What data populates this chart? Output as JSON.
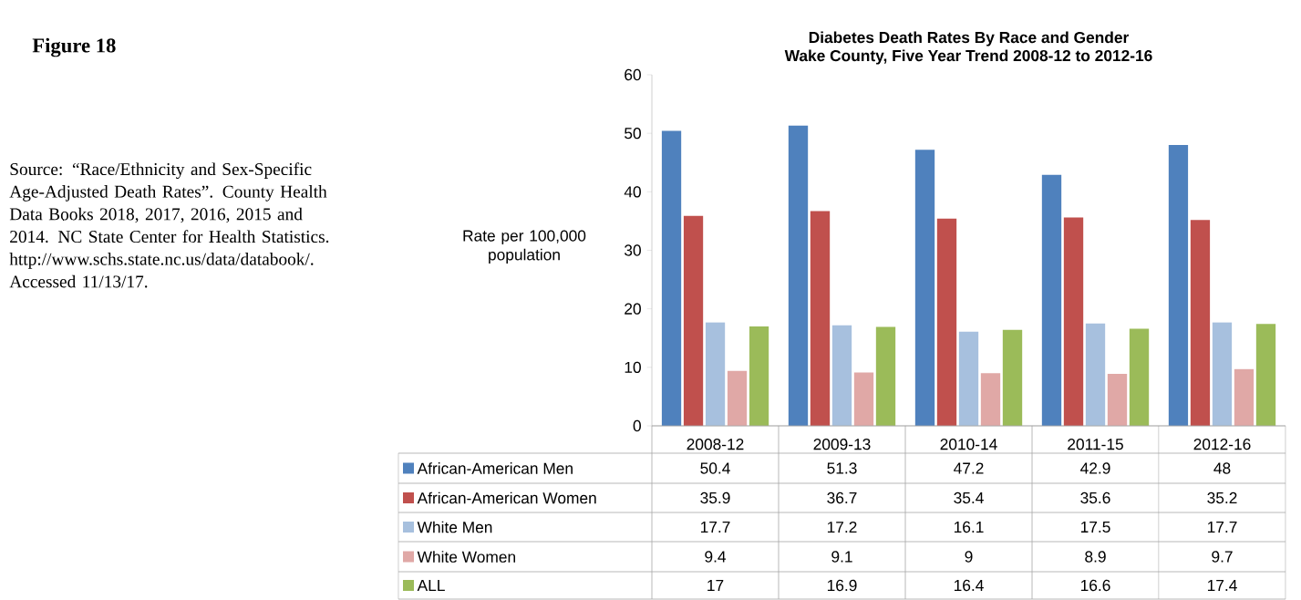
{
  "chart_data": {
    "type": "bar",
    "title": "Diabetes Death Rates By Race and Gender",
    "subtitle": "Wake County, Five Year Trend 2008-12 to 2012-16",
    "ylabel": "Rate per 100,000 population",
    "categories": [
      "2008-12",
      "2009-13",
      "2010-14",
      "2011-15",
      "2012-16"
    ],
    "series": [
      {
        "name": "African-American  Men",
        "color": "#4f81bd",
        "values": [
          50.4,
          51.3,
          47.2,
          42.9,
          48
        ]
      },
      {
        "name": "African-American Women",
        "color": "#c0504d",
        "values": [
          35.9,
          36.7,
          35.4,
          35.6,
          35.2
        ]
      },
      {
        "name": "White Men",
        "color": "#a7c0de",
        "values": [
          17.7,
          17.2,
          16.1,
          17.5,
          17.7
        ]
      },
      {
        "name": "White Women",
        "color": "#e0a8a6",
        "values": [
          9.4,
          9.1,
          9,
          8.9,
          9.7
        ]
      },
      {
        "name": "ALL",
        "color": "#9bbb59",
        "values": [
          17,
          16.9,
          16.4,
          16.6,
          17.4
        ]
      }
    ],
    "ylim": [
      0,
      60
    ],
    "yticks": [
      0,
      10,
      20,
      30,
      40,
      50,
      60
    ],
    "data_labels": true,
    "legend": "bottom",
    "grid": false,
    "annotations": [
      "**Figure 18**",
      "Source: “Race/Ethnicity and Sex-Specific Age-Adjusted Death Rates”. County Health Data Books 2018, 2017, 2016, 2015 and 2014. NC State Center for Health Statistics. http://www.schs.state.nc.us/data/databook/. Accessed 11/13/17."
    ]
  }
}
